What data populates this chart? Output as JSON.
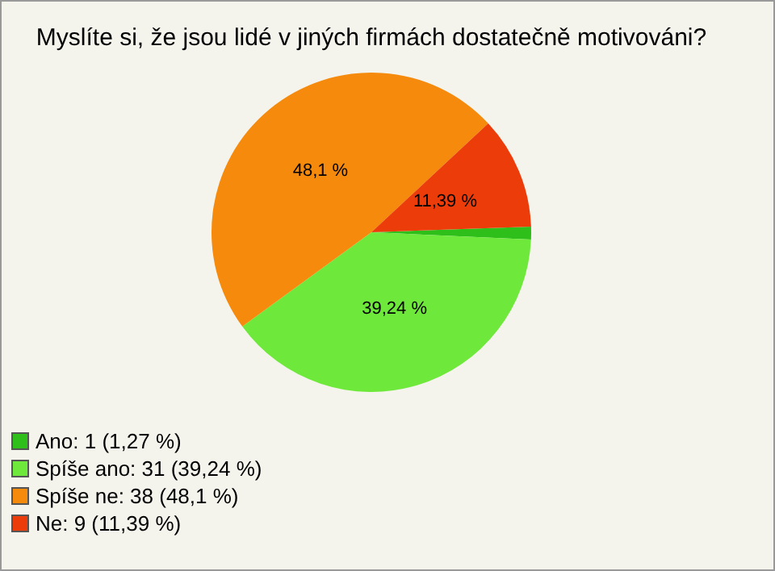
{
  "chart_data": {
    "type": "pie",
    "title": "Myslíte si, že jsou lidé v jiných firmách dostatečně motivováni?",
    "categories": [
      "Ano: 1 (1,27 %)",
      "Spíše ano: 31 (39,24 %)",
      "Spíše ne: 38 (48,1 %)",
      "Ne: 9 (11,39 %)"
    ],
    "values": [
      1.27,
      39.24,
      48.1,
      11.39
    ],
    "colors": [
      "#2fbf1a",
      "#6ee83a",
      "#f58a0c",
      "#ec3c0a"
    ],
    "value_labels": [
      null,
      "39,24 %",
      "48,1 %",
      "11,39 %"
    ],
    "legend": "bottom left"
  }
}
